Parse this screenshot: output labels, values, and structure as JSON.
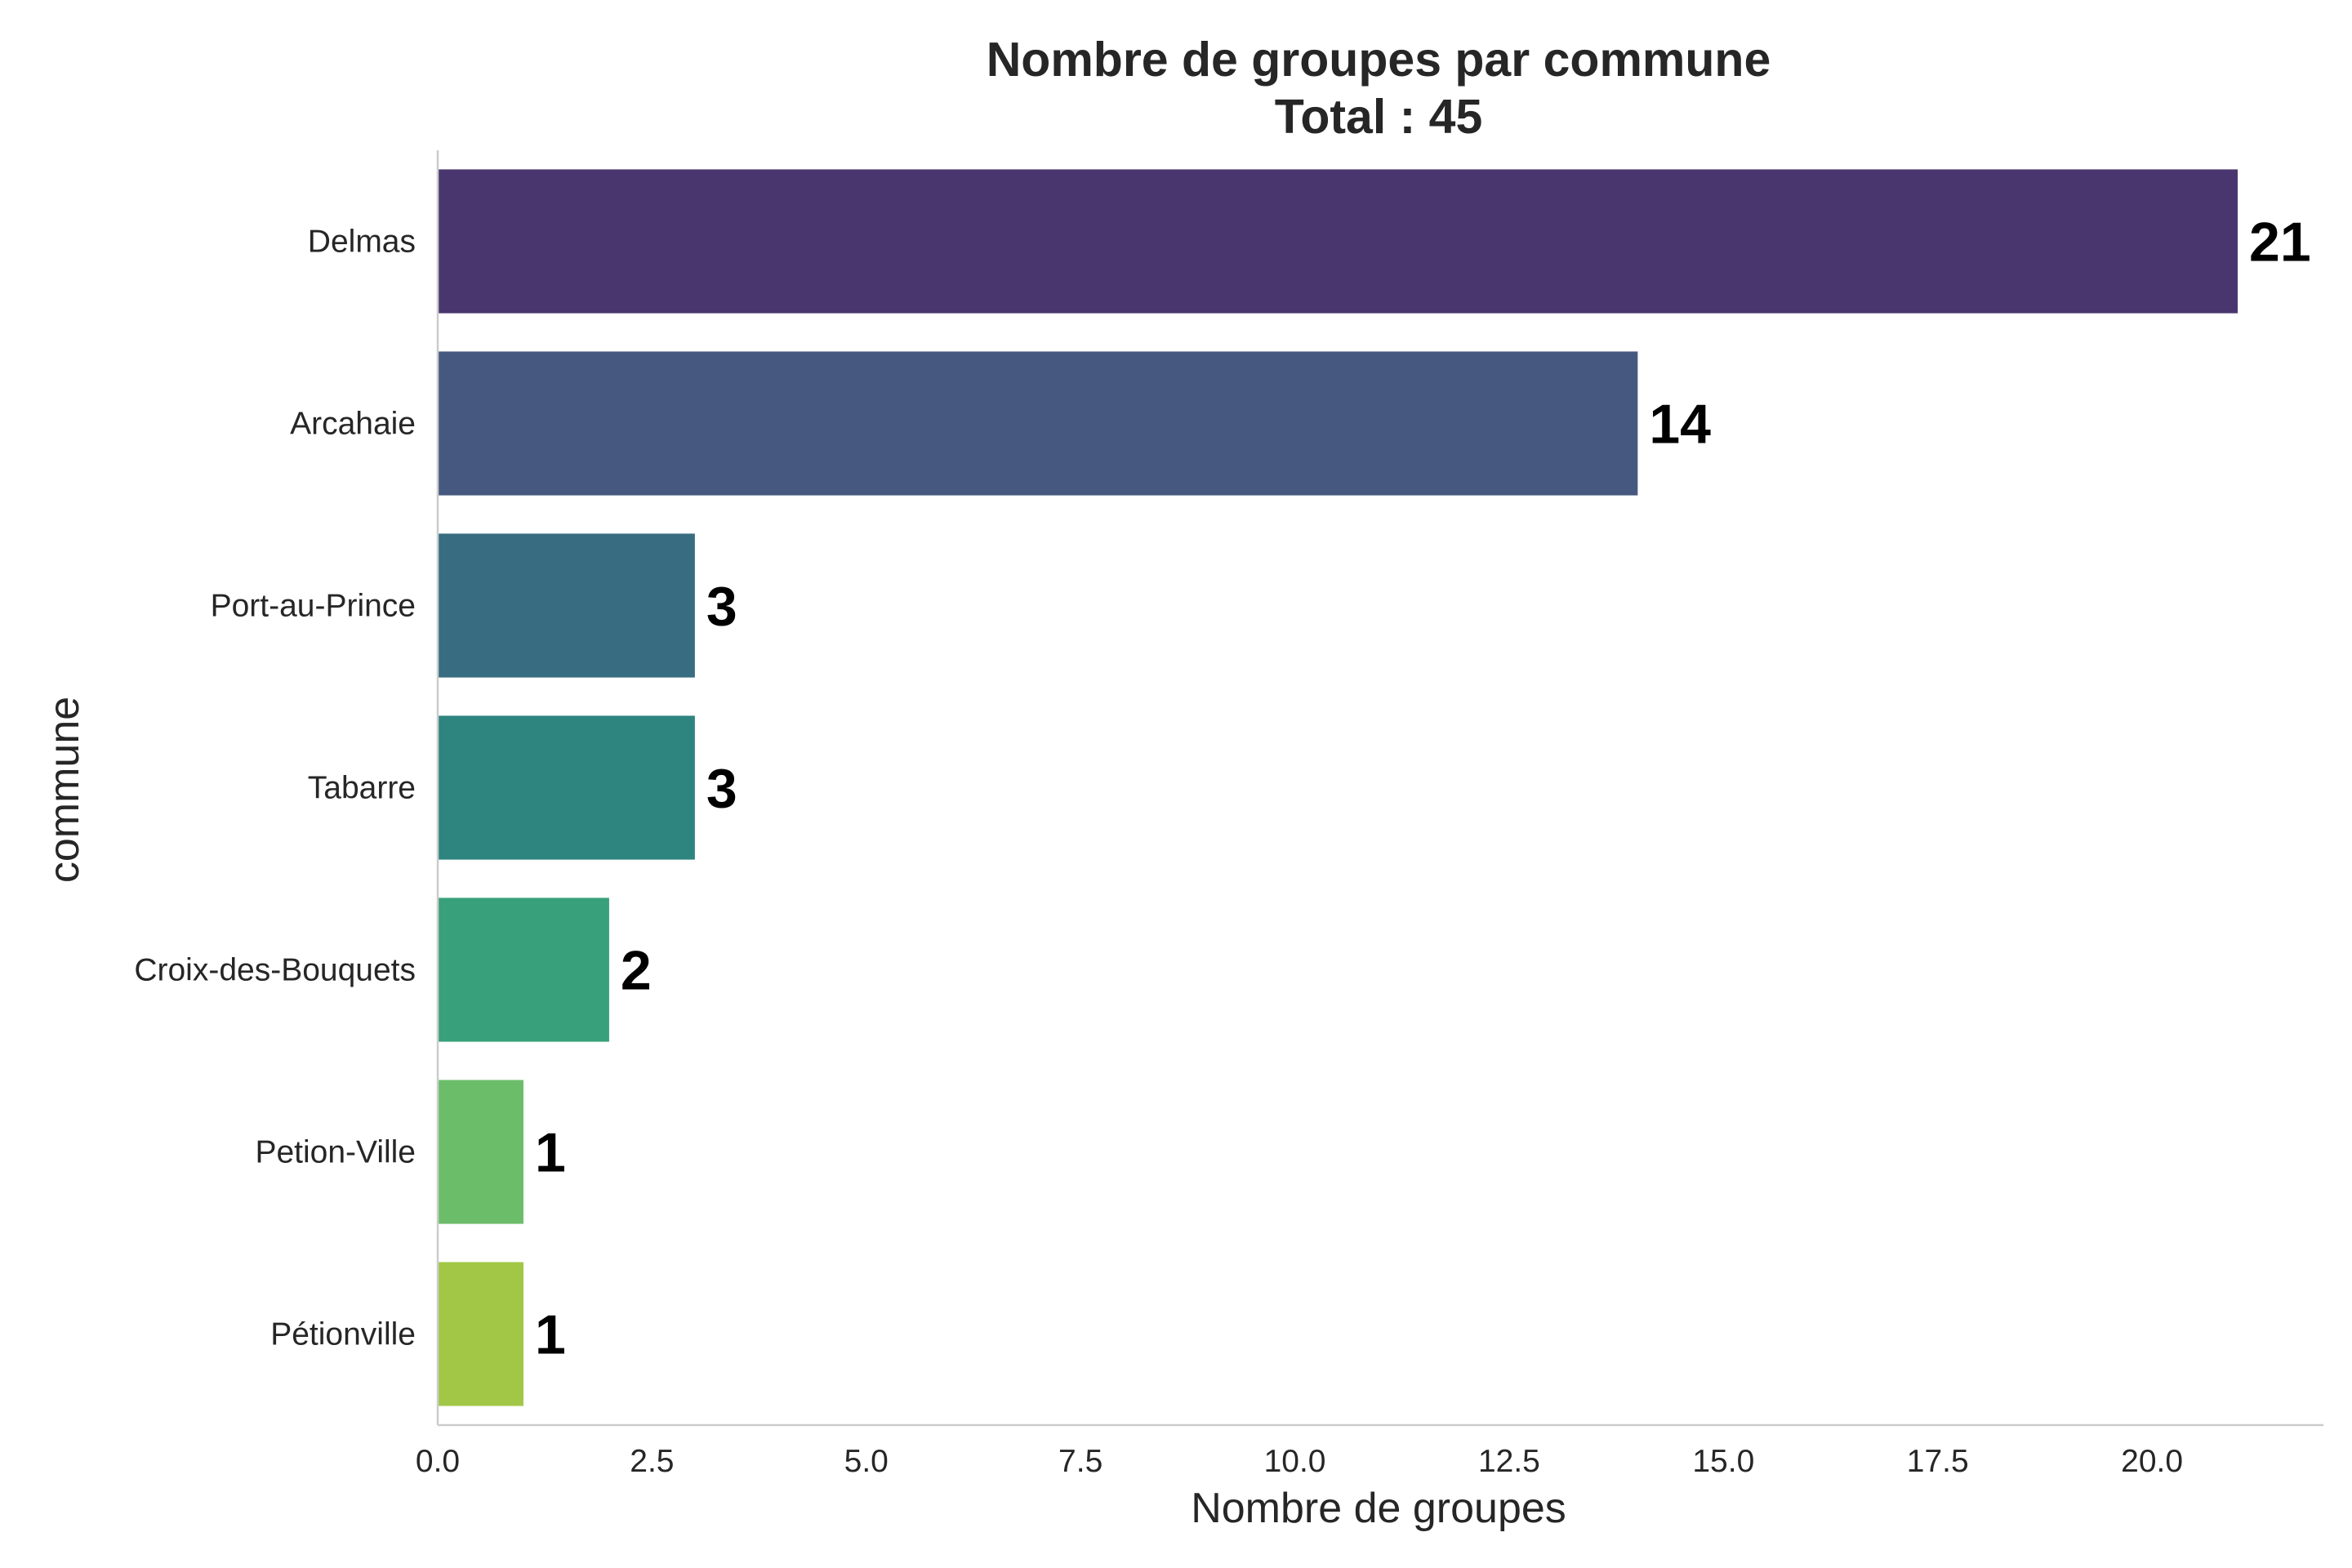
{
  "chart_data": {
    "type": "bar",
    "orientation": "horizontal",
    "title": "Nombre de groupes par commune",
    "subtitle": "Total : 45",
    "xlabel": "Nombre de groupes",
    "ylabel": "commune",
    "categories": [
      "Delmas",
      "Arcahaie",
      "Port-au-Prince",
      "Tabarre",
      "Croix-des-Bouquets",
      "Petion-Ville",
      "Pétionville"
    ],
    "values": [
      21,
      14,
      3,
      3,
      2,
      1,
      1
    ],
    "value_labels": [
      "21",
      "14",
      "3",
      "3",
      "2",
      "1",
      "1"
    ],
    "colors": [
      "#4a366f",
      "#465880",
      "#386c80",
      "#2e847f",
      "#38a07a",
      "#6cbd6a",
      "#a2c747"
    ],
    "xlim": [
      0,
      22
    ],
    "xticks": [
      0,
      2.5,
      5,
      7.5,
      10,
      12.5,
      15,
      17.5,
      20
    ],
    "xtick_labels": [
      "0.0",
      "2.5",
      "5.0",
      "7.5",
      "10.0",
      "12.5",
      "15.0",
      "17.5",
      "20.0"
    ],
    "grid": false,
    "legend": "none"
  }
}
